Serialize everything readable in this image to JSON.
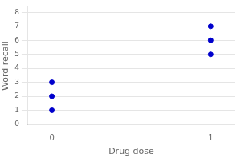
{
  "chart_data": {
    "type": "scatter",
    "x": [
      0,
      0,
      0,
      1,
      1,
      1
    ],
    "values": [
      1,
      2,
      3,
      5,
      6,
      7
    ],
    "color": "#0000cc",
    "xlabel": "Drug dose",
    "ylabel": "Word recall",
    "xlim": [
      -0.15,
      1.15
    ],
    "ylim": [
      -0.05,
      8.4
    ],
    "xticks": [
      0,
      1
    ],
    "yticks": [
      0,
      1,
      2,
      3,
      4,
      5,
      6,
      7,
      8
    ],
    "grid": "y"
  }
}
